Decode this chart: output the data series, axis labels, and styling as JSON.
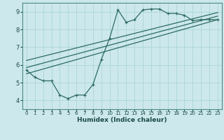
{
  "xlabel": "Humidex (Indice chaleur)",
  "ylabel": "",
  "bg_color": "#cce8ec",
  "line_color": "#2e6b62",
  "grid_color": "#b0d8dc",
  "xlim": [
    -0.5,
    23.5
  ],
  "ylim": [
    3.5,
    9.5
  ],
  "yticks": [
    4,
    5,
    6,
    7,
    8,
    9
  ],
  "xticks": [
    0,
    1,
    2,
    3,
    4,
    5,
    6,
    7,
    8,
    9,
    10,
    11,
    12,
    13,
    14,
    15,
    16,
    17,
    18,
    19,
    20,
    21,
    22,
    23
  ],
  "line1_x": [
    0,
    1,
    2,
    3,
    4,
    5,
    6,
    7,
    8,
    9,
    10,
    11,
    12,
    13,
    14,
    15,
    16,
    17,
    18,
    19,
    20,
    21,
    22,
    23
  ],
  "line1_y": [
    5.7,
    5.3,
    5.1,
    5.1,
    4.3,
    4.1,
    4.3,
    4.3,
    4.9,
    6.3,
    7.5,
    9.1,
    8.4,
    8.55,
    9.1,
    9.15,
    9.15,
    8.9,
    8.9,
    8.8,
    8.5,
    8.55,
    8.55,
    8.55
  ],
  "line2_x": [
    0,
    23
  ],
  "line2_y": [
    5.85,
    8.75
  ],
  "line3_x": [
    0,
    23
  ],
  "line3_y": [
    6.25,
    8.95
  ],
  "line4_x": [
    0,
    23
  ],
  "line4_y": [
    5.5,
    8.55
  ]
}
